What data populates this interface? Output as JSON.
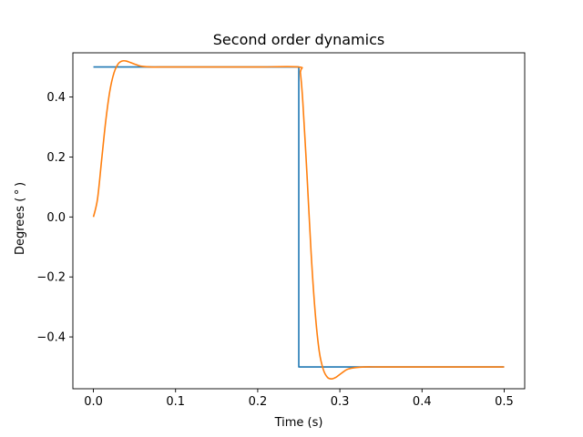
{
  "chart_data": {
    "type": "line",
    "title": "Second order dynamics",
    "xlabel": "Time (s)",
    "ylabel": "Degrees ($^\\circ$)",
    "ylabel_display": "Degrees ( ° )",
    "xlim": [
      -0.025,
      0.525
    ],
    "ylim": [
      -0.5728,
      0.5474
    ],
    "xticks": [
      0.0,
      0.1,
      0.2,
      0.3,
      0.4,
      0.5
    ],
    "xtick_labels": [
      "0.0",
      "0.1",
      "0.2",
      "0.3",
      "0.4",
      "0.5"
    ],
    "yticks": [
      -0.4,
      -0.2,
      0.0,
      0.2,
      0.4
    ],
    "ytick_labels": [
      "−0.4",
      "−0.2",
      "0.0",
      "0.2",
      "0.4"
    ],
    "grid": false,
    "legend": "none",
    "series": [
      {
        "color": "#1f77b4",
        "x": [
          0.0,
          0.25,
          0.25,
          0.5
        ],
        "y": [
          0.5,
          0.5,
          -0.5,
          -0.5
        ]
      },
      {
        "color": "#ff7f0e",
        "x": [
          0.0,
          0.005,
          0.01,
          0.015,
          0.02,
          0.025,
          0.03,
          0.035,
          0.04,
          0.045,
          0.05,
          0.055,
          0.06,
          0.07,
          0.08,
          0.1,
          0.15,
          0.2,
          0.25,
          0.252,
          0.255,
          0.26,
          0.265,
          0.27,
          0.275,
          0.28,
          0.285,
          0.29,
          0.295,
          0.3,
          0.305,
          0.31,
          0.32,
          0.33,
          0.35,
          0.4,
          0.45,
          0.5
        ],
        "y": [
          0.0,
          0.06,
          0.19,
          0.32,
          0.42,
          0.48,
          0.51,
          0.52,
          0.52,
          0.515,
          0.51,
          0.505,
          0.502,
          0.5,
          0.5,
          0.5,
          0.5,
          0.5,
          0.5,
          0.48,
          0.38,
          0.14,
          -0.12,
          -0.32,
          -0.45,
          -0.51,
          -0.535,
          -0.54,
          -0.535,
          -0.525,
          -0.515,
          -0.507,
          -0.502,
          -0.5,
          -0.5,
          -0.5,
          -0.5,
          -0.5
        ]
      }
    ]
  }
}
